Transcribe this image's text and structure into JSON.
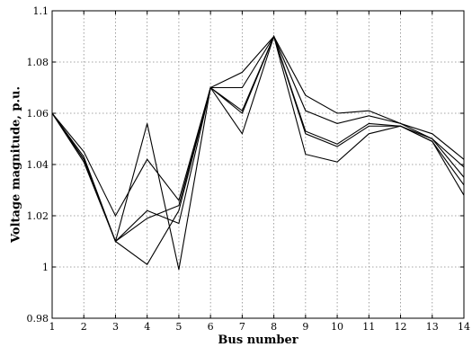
{
  "chart_data": {
    "type": "line",
    "title": "",
    "xlabel": "Bus number",
    "ylabel": "Voltage magnitude, p.u.",
    "x": [
      1,
      2,
      3,
      4,
      5,
      6,
      7,
      8,
      9,
      10,
      11,
      12,
      13,
      14
    ],
    "xlim": [
      1,
      14
    ],
    "ylim": [
      0.98,
      1.1
    ],
    "xticks": [
      1,
      2,
      3,
      4,
      5,
      6,
      7,
      8,
      9,
      10,
      11,
      12,
      13,
      14
    ],
    "yticks": [
      0.98,
      1,
      1.02,
      1.04,
      1.06,
      1.08,
      1.1
    ],
    "ytick_labels": [
      "0.98",
      "1",
      "1.02",
      "1.04",
      "1.06",
      "1.08",
      "1.1"
    ],
    "grid": true,
    "line_color": "#000000",
    "series": [
      {
        "values": [
          1.06,
          1.045,
          1.02,
          1.042,
          1.026,
          1.07,
          1.061,
          1.09,
          1.067,
          1.06,
          1.061,
          1.056,
          1.052,
          1.042
        ]
      },
      {
        "values": [
          1.06,
          1.043,
          1.01,
          1.056,
          0.999,
          1.07,
          1.076,
          1.09,
          1.061,
          1.056,
          1.059,
          1.056,
          1.05,
          1.035
        ]
      },
      {
        "values": [
          1.06,
          1.042,
          1.01,
          1.022,
          1.017,
          1.07,
          1.07,
          1.09,
          1.053,
          1.048,
          1.056,
          1.055,
          1.05,
          1.039
        ]
      },
      {
        "values": [
          1.06,
          1.041,
          1.01,
          1.001,
          1.022,
          1.07,
          1.052,
          1.09,
          1.044,
          1.041,
          1.052,
          1.055,
          1.049,
          1.028
        ]
      },
      {
        "values": [
          1.06,
          1.042,
          1.01,
          1.019,
          1.024,
          1.07,
          1.06,
          1.09,
          1.052,
          1.047,
          1.055,
          1.055,
          1.049,
          1.032
        ]
      }
    ]
  }
}
